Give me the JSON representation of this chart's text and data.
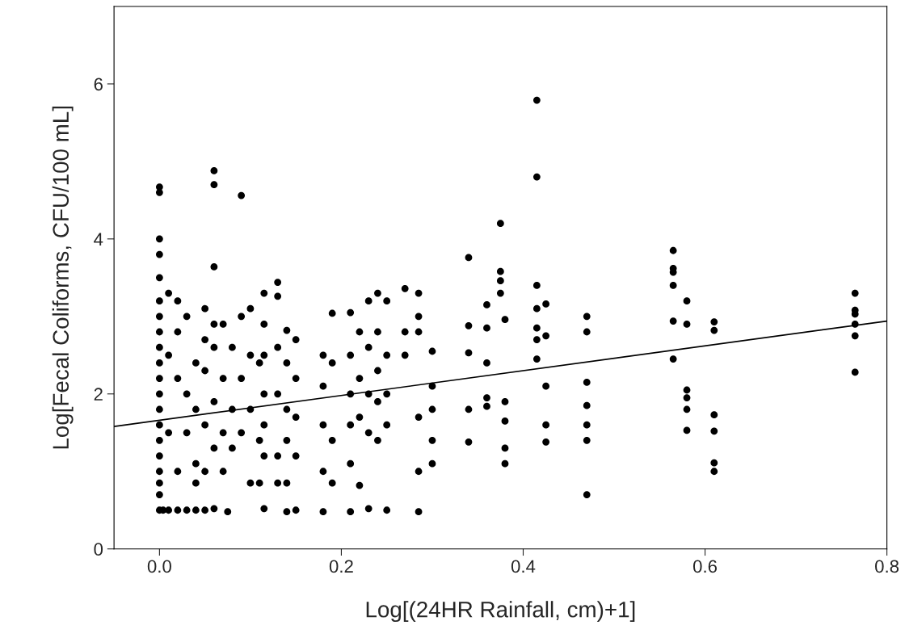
{
  "chart_data": {
    "type": "scatter",
    "xlabel": "Log[(24HR Rainfall, cm)+1]",
    "ylabel": "Log[Fecal Coliforms, CFU/100 mL]",
    "xlim": [
      -0.05,
      0.8
    ],
    "ylim": [
      0,
      7
    ],
    "xticks": [
      {
        "value": 0,
        "label": "0.0"
      },
      0.2,
      0.4,
      0.6,
      0.8
    ],
    "yticks": [
      0,
      2,
      4,
      6
    ],
    "grid": false,
    "series": [
      {
        "color": "#000000",
        "marker": "circle",
        "x": [
          0,
          0,
          0,
          0,
          0,
          0,
          0,
          0,
          0,
          0,
          0,
          0,
          0,
          0,
          0,
          0,
          0,
          0,
          0,
          0,
          0.004,
          0.01,
          0.01,
          0.01,
          0.01,
          0.02,
          0.02,
          0.02,
          0.02,
          0.02,
          0.03,
          0.03,
          0.03,
          0.03,
          0.04,
          0.04,
          0.04,
          0.04,
          0.04,
          0.05,
          0.05,
          0.05,
          0.05,
          0.05,
          0.05,
          0.06,
          0.06,
          0.06,
          0.06,
          0.06,
          0.06,
          0.06,
          0.06,
          0.07,
          0.07,
          0.07,
          0.07,
          0.075,
          0.08,
          0.08,
          0.08,
          0.09,
          0.09,
          0.09,
          0.09,
          0.1,
          0.1,
          0.1,
          0.1,
          0.11,
          0.11,
          0.11,
          0.115,
          0.115,
          0.115,
          0.115,
          0.115,
          0.115,
          0.115,
          0.13,
          0.13,
          0.13,
          0.13,
          0.13,
          0.13,
          0.14,
          0.14,
          0.14,
          0.14,
          0.14,
          0.14,
          0.15,
          0.15,
          0.15,
          0.15,
          0.15,
          0.18,
          0.18,
          0.18,
          0.18,
          0.18,
          0.19,
          0.19,
          0.19,
          0.19,
          0.21,
          0.21,
          0.21,
          0.21,
          0.21,
          0.21,
          0.22,
          0.22,
          0.22,
          0.22,
          0.23,
          0.23,
          0.23,
          0.23,
          0.23,
          0.24,
          0.24,
          0.24,
          0.24,
          0.24,
          0.25,
          0.25,
          0.25,
          0.25,
          0.25,
          0.27,
          0.27,
          0.27,
          0.285,
          0.285,
          0.285,
          0.285,
          0.285,
          0.285,
          0.3,
          0.3,
          0.3,
          0.3,
          0.3,
          0.34,
          0.34,
          0.34,
          0.34,
          0.34,
          0.36,
          0.36,
          0.36,
          0.36,
          0.36,
          0.375,
          0.375,
          0.375,
          0.375,
          0.38,
          0.38,
          0.38,
          0.38,
          0.38,
          0.415,
          0.415,
          0.415,
          0.415,
          0.415,
          0.415,
          0.415,
          0.425,
          0.425,
          0.425,
          0.425,
          0.425,
          0.47,
          0.47,
          0.47,
          0.47,
          0.47,
          0.47,
          0.47,
          0.565,
          0.565,
          0.565,
          0.565,
          0.565,
          0.565,
          0.58,
          0.58,
          0.58,
          0.58,
          0.58,
          0.58,
          0.61,
          0.61,
          0.61,
          0.61,
          0.61,
          0.61,
          0.765,
          0.765,
          0.765,
          0.765,
          0.765,
          0.765
        ],
        "values": [
          4.67,
          4.6,
          4.0,
          3.8,
          3.5,
          3.2,
          3.0,
          2.8,
          2.6,
          2.4,
          2.2,
          2.0,
          1.8,
          1.6,
          1.4,
          1.2,
          1.0,
          0.85,
          0.7,
          0.5,
          0.5,
          3.3,
          2.5,
          1.5,
          0.5,
          3.2,
          2.8,
          2.2,
          1.0,
          0.5,
          3.0,
          2.0,
          1.5,
          0.5,
          2.4,
          1.8,
          1.1,
          0.85,
          0.5,
          3.1,
          2.7,
          2.3,
          1.6,
          1.0,
          0.5,
          4.88,
          4.7,
          3.64,
          2.9,
          2.6,
          1.9,
          1.3,
          0.52,
          2.9,
          2.2,
          1.5,
          1.0,
          0.48,
          2.6,
          1.8,
          1.3,
          4.56,
          3.0,
          2.2,
          1.5,
          3.1,
          2.5,
          1.8,
          0.85,
          2.4,
          1.4,
          0.85,
          3.3,
          2.9,
          2.5,
          2.0,
          1.6,
          1.2,
          0.52,
          3.44,
          3.26,
          2.6,
          2.0,
          1.2,
          0.85,
          2.82,
          2.4,
          1.8,
          1.4,
          0.85,
          0.48,
          2.7,
          2.2,
          1.7,
          1.2,
          0.5,
          2.5,
          2.1,
          1.6,
          1.0,
          0.48,
          3.04,
          2.4,
          1.4,
          0.85,
          3.05,
          2.5,
          2.0,
          1.6,
          1.1,
          0.48,
          2.8,
          2.2,
          1.7,
          0.82,
          3.2,
          2.6,
          2.0,
          1.5,
          0.52,
          3.3,
          2.8,
          2.3,
          1.9,
          1.4,
          3.2,
          2.5,
          2.0,
          1.6,
          0.5,
          3.36,
          2.8,
          2.5,
          3.3,
          3.0,
          2.8,
          1.7,
          1.0,
          0.48,
          2.55,
          2.1,
          1.8,
          1.4,
          1.1,
          3.76,
          2.88,
          2.53,
          1.8,
          1.38,
          3.15,
          2.85,
          2.4,
          1.95,
          1.84,
          4.2,
          3.58,
          3.46,
          3.3,
          2.96,
          1.9,
          1.65,
          1.3,
          1.1,
          5.79,
          4.8,
          3.4,
          3.1,
          2.85,
          2.7,
          2.45,
          3.16,
          2.75,
          2.1,
          1.6,
          1.38,
          3.0,
          2.8,
          2.15,
          1.85,
          1.6,
          1.4,
          0.7,
          3.85,
          3.62,
          3.57,
          3.4,
          2.94,
          2.45,
          3.2,
          2.9,
          2.05,
          1.95,
          1.8,
          1.53,
          2.93,
          2.82,
          1.73,
          1.52,
          1.11,
          1.0,
          3.3,
          3.08,
          3.03,
          2.9,
          2.75,
          2.28
        ]
      },
      {
        "type": "line",
        "color": "#000000",
        "marker": "none",
        "line_style": "solid",
        "x": [
          -0.05,
          0.8
        ],
        "values": [
          1.58,
          2.94
        ]
      }
    ]
  }
}
